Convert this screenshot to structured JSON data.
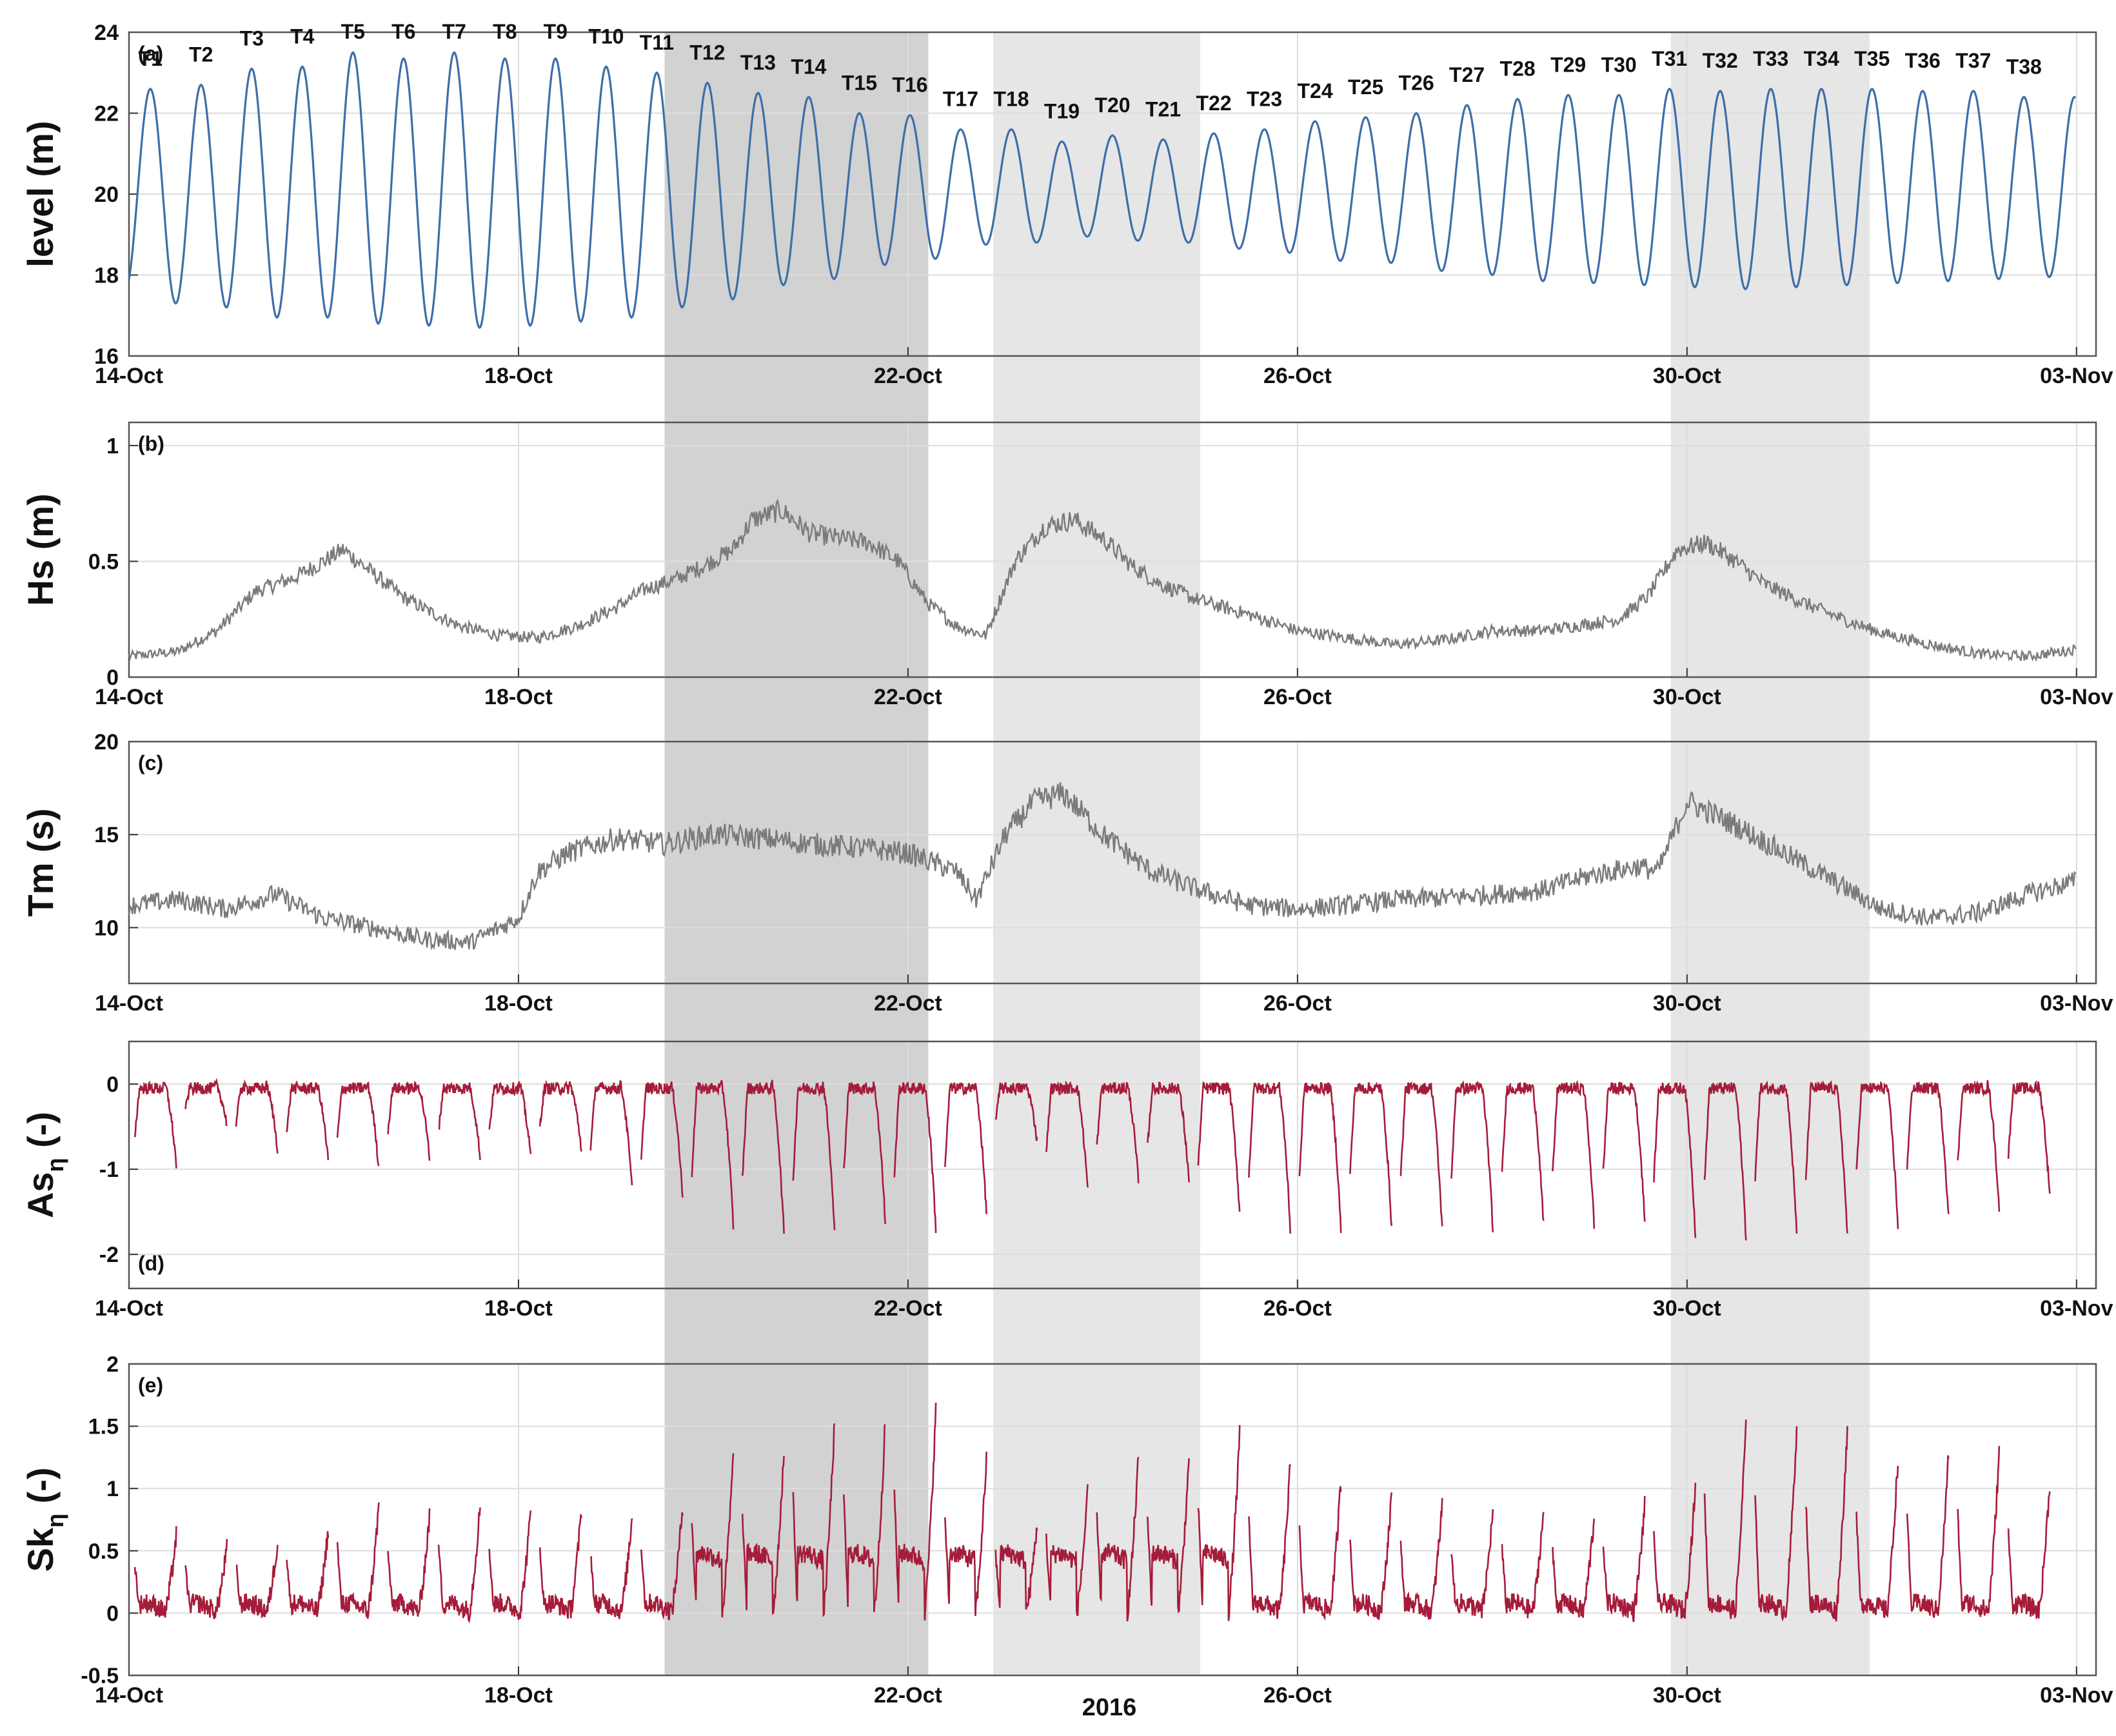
{
  "chart_data": {
    "type": "line",
    "xlabel": "2016",
    "x_ticks": [
      "14-Oct",
      "18-Oct",
      "22-Oct",
      "26-Oct",
      "30-Oct",
      "03-Nov"
    ],
    "x_range_days": [
      0,
      20.2
    ],
    "grid": true,
    "colors": {
      "level": "#3d6ea8",
      "waves": "#7a7a7a",
      "skewness": "#a51c3a",
      "shade_dark": "#d2d2d2",
      "shade_light": "#e6e6e6"
    },
    "shaded_periods": [
      {
        "start": "2016-10-19 12:00",
        "end": "2016-10-22 05:00",
        "shade": "dark"
      },
      {
        "start": "2016-10-22 21:00",
        "end": "2016-10-25 00:00",
        "shade": "light"
      },
      {
        "start": "2016-10-29 20:00",
        "end": "2016-10-31 21:00",
        "shade": "light"
      }
    ],
    "panels": [
      {
        "id": "a",
        "label": "(a)",
        "ylabel": "level (m)",
        "ylim": [
          16,
          24
        ],
        "yticks": [
          "16",
          "18",
          "20",
          "22",
          "24"
        ],
        "series_desc": "semi-diurnal tidal water level",
        "tides": [
          {
            "label": "T1",
            "day": 0.22,
            "high": 22.6,
            "low_after": 17.3
          },
          {
            "label": "T2",
            "day": 0.74,
            "high": 22.7,
            "low_after": 17.2
          },
          {
            "label": "T3",
            "day": 1.26,
            "high": 23.1,
            "low_after": 16.95
          },
          {
            "label": "T4",
            "day": 1.78,
            "high": 23.15,
            "low_after": 16.95
          },
          {
            "label": "T5",
            "day": 2.3,
            "high": 23.5,
            "low_after": 16.8
          },
          {
            "label": "T6",
            "day": 2.82,
            "high": 23.35,
            "low_after": 16.75
          },
          {
            "label": "T7",
            "day": 3.34,
            "high": 23.5,
            "low_after": 16.7
          },
          {
            "label": "T8",
            "day": 3.86,
            "high": 23.35,
            "low_after": 16.75
          },
          {
            "label": "T9",
            "day": 4.38,
            "high": 23.35,
            "low_after": 16.85
          },
          {
            "label": "T10",
            "day": 4.9,
            "high": 23.15,
            "low_after": 16.95
          },
          {
            "label": "T11",
            "day": 5.42,
            "high": 23.0,
            "low_after": 17.2
          },
          {
            "label": "T12",
            "day": 5.94,
            "high": 22.75,
            "low_after": 17.4
          },
          {
            "label": "T13",
            "day": 6.46,
            "high": 22.5,
            "low_after": 17.75
          },
          {
            "label": "T14",
            "day": 6.98,
            "high": 22.4,
            "low_after": 17.9
          },
          {
            "label": "T15",
            "day": 7.5,
            "high": 22.0,
            "low_after": 18.25
          },
          {
            "label": "T16",
            "day": 8.02,
            "high": 21.95,
            "low_after": 18.4
          },
          {
            "label": "T17",
            "day": 8.54,
            "high": 21.6,
            "low_after": 18.75
          },
          {
            "label": "T18",
            "day": 9.06,
            "high": 21.6,
            "low_after": 18.8
          },
          {
            "label": "T19",
            "day": 9.58,
            "high": 21.3,
            "low_after": 18.95
          },
          {
            "label": "T20",
            "day": 10.1,
            "high": 21.45,
            "low_after": 18.85
          },
          {
            "label": "T21",
            "day": 10.62,
            "high": 21.35,
            "low_after": 18.8
          },
          {
            "label": "T22",
            "day": 11.14,
            "high": 21.5,
            "low_after": 18.65
          },
          {
            "label": "T23",
            "day": 11.66,
            "high": 21.6,
            "low_after": 18.55
          },
          {
            "label": "T24",
            "day": 12.18,
            "high": 21.8,
            "low_after": 18.35
          },
          {
            "label": "T25",
            "day": 12.7,
            "high": 21.9,
            "low_after": 18.3
          },
          {
            "label": "T26",
            "day": 13.22,
            "high": 22.0,
            "low_after": 18.1
          },
          {
            "label": "T27",
            "day": 13.74,
            "high": 22.2,
            "low_after": 18.0
          },
          {
            "label": "T28",
            "day": 14.26,
            "high": 22.35,
            "low_after": 17.85
          },
          {
            "label": "T29",
            "day": 14.78,
            "high": 22.45,
            "low_after": 17.8
          },
          {
            "label": "T30",
            "day": 15.3,
            "high": 22.45,
            "low_after": 17.75
          },
          {
            "label": "T31",
            "day": 15.82,
            "high": 22.6,
            "low_after": 17.7
          },
          {
            "label": "T32",
            "day": 16.34,
            "high": 22.55,
            "low_after": 17.65
          },
          {
            "label": "T33",
            "day": 16.86,
            "high": 22.6,
            "low_after": 17.7
          },
          {
            "label": "T34",
            "day": 17.38,
            "high": 22.6,
            "low_after": 17.75
          },
          {
            "label": "T35",
            "day": 17.9,
            "high": 22.6,
            "low_after": 17.8
          },
          {
            "label": "T36",
            "day": 18.42,
            "high": 22.55,
            "low_after": 17.85
          },
          {
            "label": "T37",
            "day": 18.94,
            "high": 22.55,
            "low_after": 17.9
          },
          {
            "label": "T38",
            "day": 19.46,
            "high": 22.4,
            "low_after": 17.95
          }
        ]
      },
      {
        "id": "b",
        "label": "(b)",
        "ylabel": "Hs (m)",
        "ylim": [
          0,
          1.1
        ],
        "yticks": [
          "0",
          "0.5",
          "1"
        ],
        "x": [
          0,
          0.5,
          0.9,
          1.3,
          1.7,
          2.0,
          2.2,
          2.5,
          2.8,
          3.1,
          3.4,
          3.8,
          4.2,
          4.6,
          5.0,
          5.3,
          5.6,
          5.9,
          6.2,
          6.4,
          6.7,
          7.0,
          7.3,
          7.6,
          7.9,
          8.2,
          8.5,
          8.8,
          9.1,
          9.4,
          9.7,
          10.0,
          10.3,
          10.6,
          11.0,
          11.5,
          12.0,
          12.5,
          13.0,
          13.5,
          14.0,
          14.5,
          15.0,
          15.3,
          15.6,
          15.9,
          16.2,
          16.5,
          16.8,
          17.2,
          17.6,
          18.0,
          18.5,
          19.0,
          19.5,
          20.0
        ],
        "values": [
          0.09,
          0.11,
          0.2,
          0.37,
          0.43,
          0.5,
          0.55,
          0.45,
          0.35,
          0.28,
          0.22,
          0.18,
          0.17,
          0.22,
          0.3,
          0.38,
          0.42,
          0.48,
          0.55,
          0.68,
          0.72,
          0.62,
          0.6,
          0.58,
          0.5,
          0.32,
          0.22,
          0.18,
          0.5,
          0.65,
          0.68,
          0.6,
          0.48,
          0.4,
          0.33,
          0.27,
          0.2,
          0.17,
          0.14,
          0.16,
          0.2,
          0.2,
          0.23,
          0.25,
          0.35,
          0.55,
          0.58,
          0.5,
          0.4,
          0.32,
          0.25,
          0.19,
          0.14,
          0.1,
          0.09,
          0.12
        ]
      },
      {
        "id": "c",
        "label": "(c)",
        "ylabel": "Tm (s)",
        "ylim": [
          7,
          20
        ],
        "yticks": [
          "10",
          "15",
          "20"
        ],
        "x": [
          0,
          0.5,
          1.0,
          1.5,
          2.0,
          2.5,
          3.0,
          3.5,
          4.0,
          4.2,
          4.5,
          5.0,
          5.5,
          6.0,
          6.5,
          7.0,
          7.5,
          8.0,
          8.5,
          8.7,
          9.0,
          9.3,
          9.6,
          10.0,
          10.5,
          11.0,
          11.5,
          12.0,
          12.5,
          13.0,
          13.5,
          14.0,
          14.5,
          15.0,
          15.5,
          15.7,
          16.0,
          16.5,
          17.0,
          17.5,
          18.0,
          18.5,
          19.0,
          19.5,
          20.0
        ],
        "values": [
          11.2,
          11.5,
          11.0,
          11.8,
          10.5,
          10.0,
          9.4,
          9.2,
          10.5,
          13.0,
          14.0,
          14.8,
          14.5,
          15.0,
          14.8,
          14.5,
          14.3,
          14.0,
          13.0,
          11.5,
          15.0,
          16.8,
          17.2,
          15.0,
          13.0,
          12.0,
          11.2,
          11.0,
          11.2,
          11.5,
          11.6,
          11.8,
          12.0,
          12.8,
          13.3,
          13.0,
          16.8,
          15.5,
          14.0,
          12.5,
          11.0,
          10.5,
          10.8,
          11.8,
          12.5
        ]
      },
      {
        "id": "d",
        "label": "(d)",
        "ylabel": "As",
        "ylabel_sub": "η",
        "ylabel_unit": " (-)",
        "ylim": [
          -2.4,
          0.5
        ],
        "yticks": [
          "0",
          "-1",
          "-2"
        ],
        "series_desc": "per-tide asymmetry, plateaus near 0 at high tide, dips at low tide",
        "dip_min_by_tide": [
          -1.0,
          -0.5,
          -0.8,
          -0.95,
          -1.05,
          -0.9,
          -0.9,
          -0.9,
          -0.8,
          -1.3,
          -1.4,
          -1.75,
          -1.85,
          -1.85,
          -1.7,
          -1.8,
          -1.6,
          -0.7,
          -1.3,
          -1.2,
          -1.2,
          -1.6,
          -1.8,
          -1.8,
          -1.75,
          -1.8,
          -1.8,
          -1.75,
          -1.75,
          -1.7,
          -1.85,
          -1.9,
          -1.85,
          -1.85,
          -1.75,
          -1.65,
          -1.55,
          -1.4
        ]
      },
      {
        "id": "e",
        "label": "(e)",
        "ylabel": "Sk",
        "ylabel_sub": "η",
        "ylabel_unit": " (-)",
        "ylim": [
          -0.5,
          2
        ],
        "yticks": [
          "-0.5",
          "0",
          "0.5",
          "1",
          "1.5",
          "2"
        ],
        "series_desc": "per-tide skewness peaks",
        "peak_by_tide": [
          0.65,
          0.55,
          0.6,
          0.7,
          0.9,
          0.8,
          0.9,
          0.85,
          0.85,
          0.8,
          0.9,
          1.3,
          1.35,
          1.6,
          1.6,
          1.7,
          1.3,
          0.75,
          1.0,
          1.3,
          1.3,
          1.5,
          1.25,
          1.1,
          1.0,
          0.9,
          0.85,
          0.85,
          0.8,
          0.9,
          1.05,
          1.6,
          1.55,
          1.55,
          1.3,
          1.35,
          1.35,
          1.1
        ]
      }
    ]
  }
}
